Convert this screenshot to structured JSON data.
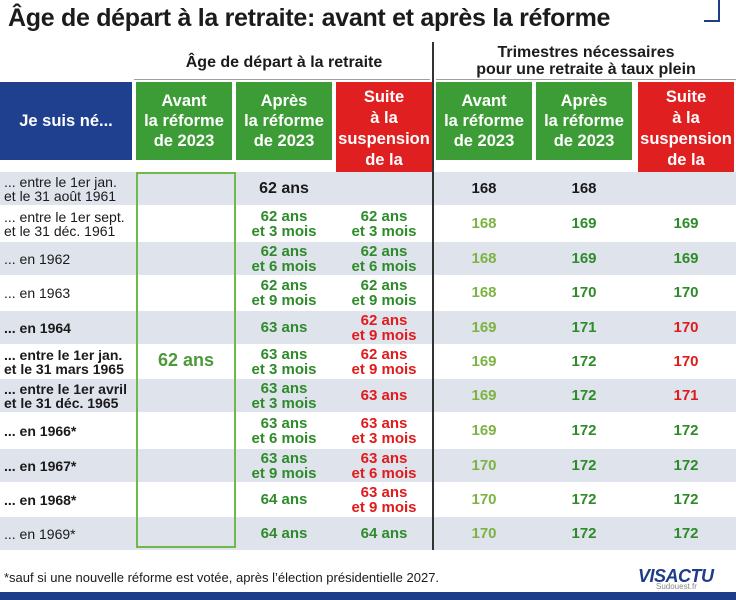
{
  "title": "Âge de départ à la retraite: avant et après la réforme",
  "group_left": "Âge de départ à la retraite",
  "group_right": "Trimestres nécessaires\npour une retraite à taux plein",
  "headers": {
    "born": "Je suis né...",
    "before": "Avant\nla réforme\nde 2023",
    "after": "Après\nla réforme\nde 2023",
    "suspension": "Suite\nà la\nsuspension\nde la\nréforme",
    "q_before": "Avant\nla réforme\nde 2023",
    "q_after": "Après\nla réforme\nde 2023",
    "q_suspension": "Suite\nà la\nsuspension\nde la\nréforme"
  },
  "before_age_all": "62 ans",
  "rows": [
    {
      "label": "... entre le 1er jan.\net le 31 août 1961",
      "after": "62 ans",
      "susp": "",
      "qb": "168",
      "qa": "168",
      "qs": ""
    },
    {
      "label": "... entre le 1er sept.\net le 31 déc. 1961",
      "after": "62 ans\net 3 mois",
      "susp": "62 ans\net 3 mois",
      "qb": "168",
      "qa": "169",
      "qs": "169"
    },
    {
      "label": "... en 1962",
      "after": "62 ans\net 6 mois",
      "susp": "62 ans\net 6 mois",
      "qb": "168",
      "qa": "169",
      "qs": "169"
    },
    {
      "label": "... en 1963",
      "after": "62 ans\net 9 mois",
      "susp": "62 ans\net 9 mois",
      "qb": "168",
      "qa": "170",
      "qs": "170"
    },
    {
      "label": "... en 1964",
      "after": "63 ans",
      "susp": "62 ans\net 9 mois",
      "qb": "169",
      "qa": "171",
      "qs": "170"
    },
    {
      "label": "... entre le 1er jan.\net le 31 mars 1965",
      "after": "63 ans\net 3 mois",
      "susp": "62 ans\net 9 mois",
      "qb": "169",
      "qa": "172",
      "qs": "170"
    },
    {
      "label": "... entre le 1er avril\net le 31 déc. 1965",
      "after": "63 ans\net 3 mois",
      "susp": "63 ans",
      "qb": "169",
      "qa": "172",
      "qs": "171"
    },
    {
      "label": "... en 1966*",
      "after": "63 ans\net 6 mois",
      "susp": "63 ans\net 3 mois",
      "qb": "169",
      "qa": "172",
      "qs": "172"
    },
    {
      "label": "... en 1967*",
      "after": "63 ans\net 9 mois",
      "susp": "63 ans\net 6 mois",
      "qb": "170",
      "qa": "172",
      "qs": "172"
    },
    {
      "label": "... en 1968*",
      "after": "64 ans",
      "susp": "63 ans\net 9 mois",
      "qb": "170",
      "qa": "172",
      "qs": "172"
    },
    {
      "label": "... en 1969*",
      "after": "64 ans",
      "susp": "64 ans",
      "qb": "170",
      "qa": "172",
      "qs": "172"
    }
  ],
  "footnote": "*sauf si une nouvelle réforme est votée, après l’élection présidentielle 2027.",
  "logo": "VISACTU",
  "credit": "Sudouest.fr",
  "colors": {
    "blue": "#1f3f8f",
    "green": "#3c9c35",
    "red": "#e02020",
    "shade": "#dfe3ec"
  }
}
